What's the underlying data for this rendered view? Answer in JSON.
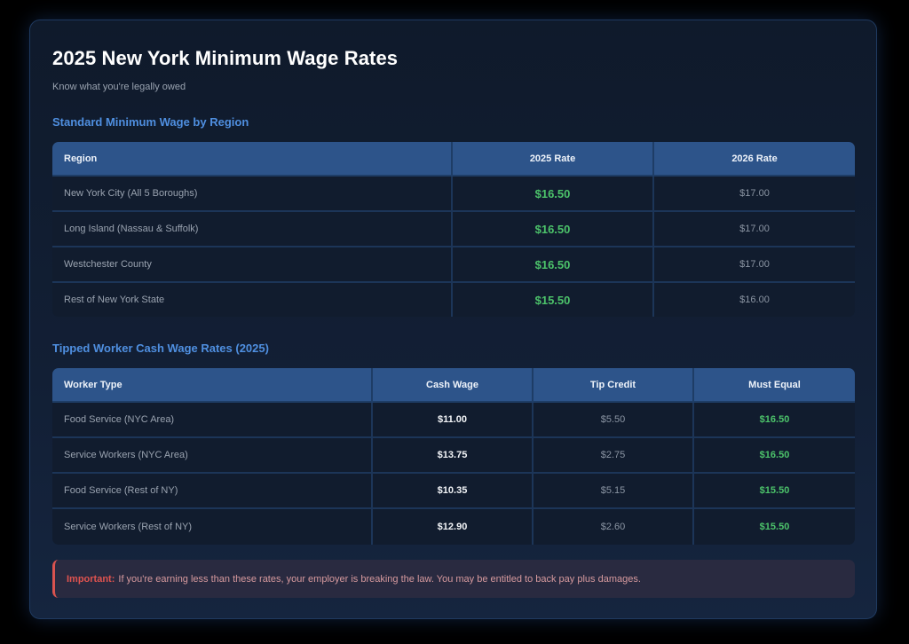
{
  "header": {
    "title": "2025 New York Minimum Wage Rates",
    "subtitle": "Know what you're legally owed"
  },
  "standard": {
    "section_title": "Standard Minimum Wage by Region",
    "columns": [
      "Region",
      "2025 Rate",
      "2026 Rate"
    ],
    "rows": [
      {
        "region": "New York City (All 5 Boroughs)",
        "rate_2025": "$16.50",
        "rate_2026": "$17.00"
      },
      {
        "region": "Long Island (Nassau & Suffolk)",
        "rate_2025": "$16.50",
        "rate_2026": "$17.00"
      },
      {
        "region": "Westchester County",
        "rate_2025": "$16.50",
        "rate_2026": "$17.00"
      },
      {
        "region": "Rest of New York State",
        "rate_2025": "$15.50",
        "rate_2026": "$16.00"
      }
    ]
  },
  "tipped": {
    "section_title": "Tipped Worker Cash Wage Rates (2025)",
    "columns": [
      "Worker Type",
      "Cash Wage",
      "Tip Credit",
      "Must Equal"
    ],
    "rows": [
      {
        "type": "Food Service (NYC Area)",
        "cash_wage": "$11.00",
        "tip_credit": "$5.50",
        "must_equal": "$16.50"
      },
      {
        "type": "Service Workers (NYC Area)",
        "cash_wage": "$13.75",
        "tip_credit": "$2.75",
        "must_equal": "$16.50"
      },
      {
        "type": "Food Service (Rest of NY)",
        "cash_wage": "$10.35",
        "tip_credit": "$5.15",
        "must_equal": "$15.50"
      },
      {
        "type": "Service Workers (Rest of NY)",
        "cash_wage": "$12.90",
        "tip_credit": "$2.60",
        "must_equal": "$15.50"
      }
    ]
  },
  "alert": {
    "label": "Important:",
    "text": "If you're earning less than these rates, your employer is breaking the law. You may be entitled to back pay plus damages."
  },
  "colors": {
    "accent": "#4f8fe0",
    "header_bg": "#2d548a",
    "positive": "#4cc26a",
    "warning": "#e0534f"
  }
}
